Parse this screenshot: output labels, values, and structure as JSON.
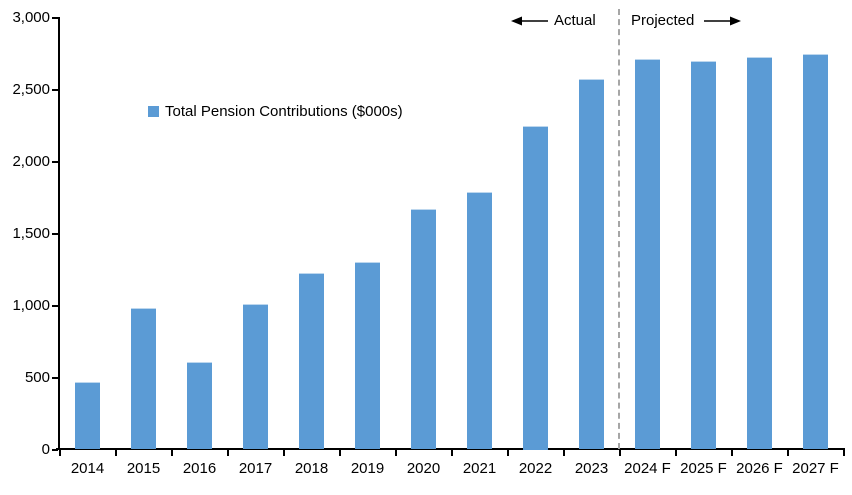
{
  "chart_data": {
    "type": "bar",
    "title": "",
    "legend": "Total Pension Contributions ($000s)",
    "xlabel": "",
    "ylabel": "",
    "categories": [
      "2014",
      "2015",
      "2016",
      "2017",
      "2018",
      "2019",
      "2020",
      "2021",
      "2022",
      "2023",
      "2024 F",
      "2025 F",
      "2026 F",
      "2027 F"
    ],
    "values": [
      470,
      985,
      610,
      1010,
      1225,
      1300,
      1670,
      1790,
      2250,
      2575,
      2715,
      2700,
      2725,
      2745
    ],
    "ylim": [
      0,
      3000
    ],
    "y_ticks": [
      {
        "value": 0,
        "label": "0"
      },
      {
        "value": 500,
        "label": "500"
      },
      {
        "value": 1000,
        "label": "1,000"
      },
      {
        "value": 1500,
        "label": "1,500"
      },
      {
        "value": 2000,
        "label": "2,000"
      },
      {
        "value": 2500,
        "label": "2,500"
      },
      {
        "value": 3000,
        "label": "3,000"
      }
    ],
    "grid": false,
    "legend_position": "upper-left-inside",
    "annotations": {
      "actual_label": "Actual",
      "projected_label": "Projected",
      "divider_between": [
        "2023",
        "2024 F"
      ]
    },
    "divider_index": 10
  },
  "colors": {
    "bar": "#5b9bd5",
    "bar_edge": "#bdd7ee",
    "divider": "#a6a6a6",
    "axis": "#000000",
    "text": "#000000",
    "background": "#ffffff"
  }
}
